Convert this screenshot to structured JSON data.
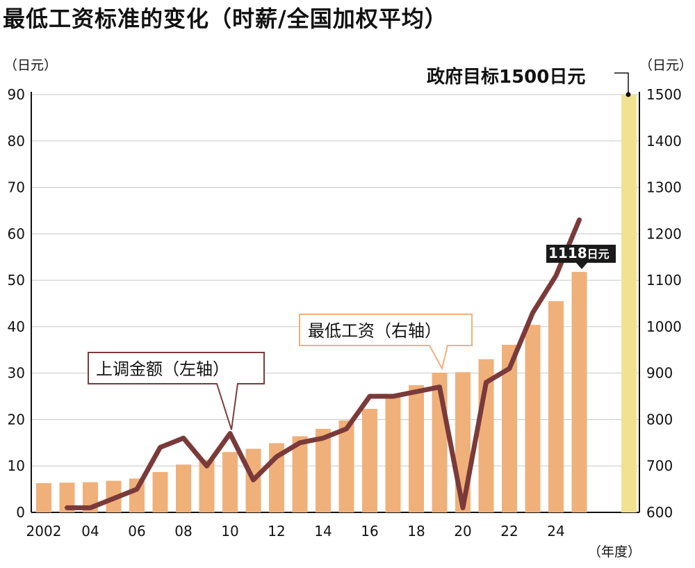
{
  "chart_data": {
    "type": "bar+line",
    "title": "最低工资标准的变化（时薪/全国加权平均）",
    "left_axis": {
      "label": "（日元）",
      "range": [
        0,
        90
      ],
      "ticks": [
        "0",
        "10",
        "20",
        "30",
        "40",
        "50",
        "60",
        "70",
        "80",
        "90"
      ]
    },
    "right_axis": {
      "label": "（日元）",
      "range": [
        600,
        1500
      ],
      "ticks": [
        "600",
        "700",
        "800",
        "900",
        "1000",
        "1100",
        "1200",
        "1300",
        "1400",
        "1500"
      ]
    },
    "x_axis": {
      "label": "（年度）",
      "tick_labels": [
        "2002",
        "04",
        "06",
        "08",
        "10",
        "12",
        "14",
        "16",
        "18",
        "20",
        "22",
        "24"
      ]
    },
    "years": [
      2002,
      2003,
      2004,
      2005,
      2006,
      2007,
      2008,
      2009,
      2010,
      2011,
      2012,
      2013,
      2014,
      2015,
      2016,
      2017,
      2018,
      2019,
      2020,
      2021,
      2022,
      2023,
      2024
    ],
    "series": [
      {
        "name": "最低工资（右轴）",
        "kind": "bar",
        "axis": "right",
        "color": "#f0b07a",
        "values": [
          663,
          664,
          665,
          668,
          673,
          687,
          703,
          713,
          730,
          737,
          749,
          764,
          780,
          798,
          823,
          848,
          874,
          901,
          902,
          930,
          961,
          1004,
          1055
        ]
      },
      {
        "name": "上调金额（左轴）",
        "kind": "line",
        "axis": "left",
        "color": "#7b3a3a",
        "values": [
          null,
          1,
          1,
          3,
          5,
          14,
          16,
          10,
          17,
          7,
          12,
          15,
          16,
          18,
          25,
          25,
          26,
          27,
          1,
          28,
          31,
          43,
          51
        ]
      }
    ],
    "annotations": {
      "latest_badge": {
        "value_text": "1118",
        "unit_text": "日元",
        "year": 2025,
        "value": 1118
      },
      "goal": {
        "text": "政府目标1500日元",
        "value": 1500,
        "color": "#f1e291"
      },
      "callout_left": "上调金额（左轴）",
      "callout_right": "最低工资（右轴）"
    },
    "extra_points": {
      "bar_2025": 1118,
      "line_2025": 63
    }
  }
}
